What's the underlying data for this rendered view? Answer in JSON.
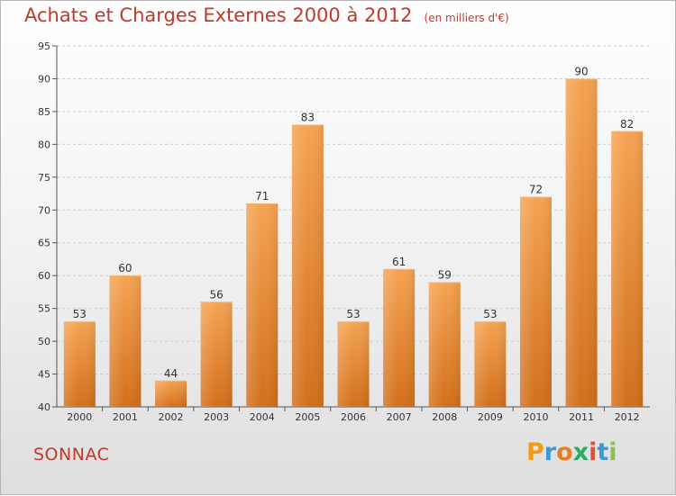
{
  "title": "Achats et Charges Externes 2000 à 2012",
  "unit": "(en milliers d'€)",
  "commune": "SONNAC",
  "logo": {
    "text": "Proxiti",
    "letters": [
      "P",
      "r",
      "o",
      "x",
      "i",
      "t",
      "i"
    ],
    "colors": [
      "#f39c12",
      "#3a9ad9",
      "#e67e22",
      "#27ae60",
      "#e74c3c",
      "#3a9ad9",
      "#8bc34a"
    ]
  },
  "colors": {
    "bar_top": "#f5a352",
    "bar_bottom": "#d26f1a",
    "title": "#c0392b"
  },
  "chart_data": {
    "type": "bar",
    "title": "Achats et Charges Externes 2000 à 2012",
    "categories": [
      "2000",
      "2001",
      "2002",
      "2003",
      "2004",
      "2005",
      "2006",
      "2007",
      "2008",
      "2009",
      "2010",
      "2011",
      "2012"
    ],
    "values": [
      53,
      60,
      44,
      56,
      71,
      83,
      53,
      61,
      59,
      53,
      72,
      90,
      82
    ],
    "yticks": [
      40,
      45,
      50,
      55,
      60,
      65,
      70,
      75,
      80,
      85,
      90,
      95
    ],
    "ylim": [
      40,
      95
    ],
    "grid": true,
    "xlabel": "",
    "ylabel": ""
  }
}
